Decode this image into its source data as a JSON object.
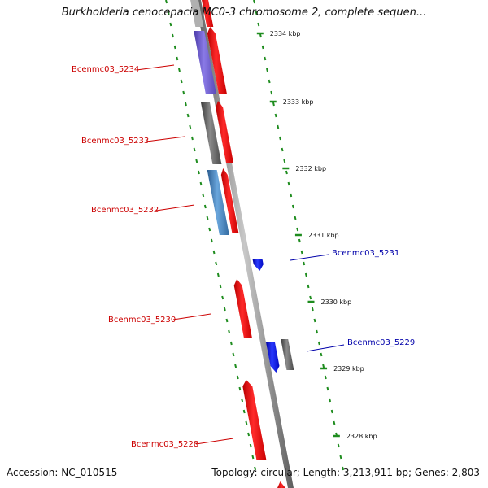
{
  "title": "Burkholderia cenocepacia MC0-3 chromosome 2, complete sequen...",
  "accession_text": "Accession: NC_010515",
  "summary_text": "Topology: circular; Length: 3,213,911 bp; Genes: 2,803",
  "colors": {
    "backbone": "#8a8a8a",
    "tick": "#1e8c1e",
    "forward_label": "#cc0000",
    "reverse_label": "#0000aa",
    "red_gene": "#ff0000",
    "purple_gene": "#7060d0",
    "gray_gene": "#606060",
    "steel_gene": "#4a88c0",
    "blue_gene": "#0010ee"
  },
  "kbp_ticks": [
    "2334 kbp",
    "2333 kbp",
    "2332 kbp",
    "2331 kbp",
    "2330 kbp",
    "2329 kbp",
    "2328 kbp"
  ],
  "genes": [
    {
      "label": "Bcenmc03_5234",
      "strand": "forward",
      "color": "purple_gene",
      "labelled": true
    },
    {
      "label": "Bcenmc03_5233",
      "strand": "forward",
      "color": "gray_gene",
      "labelled": true
    },
    {
      "label": "Bcenmc03_5232",
      "strand": "forward",
      "color": "steel_gene",
      "labelled": true
    },
    {
      "label": "Bcenmc03_5231",
      "strand": "reverse",
      "color": "blue_gene",
      "labelled": true
    },
    {
      "label": "Bcenmc03_5230",
      "strand": "forward",
      "color": "red_gene",
      "labelled": true
    },
    {
      "label": "Bcenmc03_5229",
      "strand": "reverse",
      "color": "blue_gene",
      "labelled": true
    },
    {
      "label": "Bcenmc03_5228",
      "strand": "forward",
      "color": "red_gene",
      "labelled": true
    }
  ]
}
